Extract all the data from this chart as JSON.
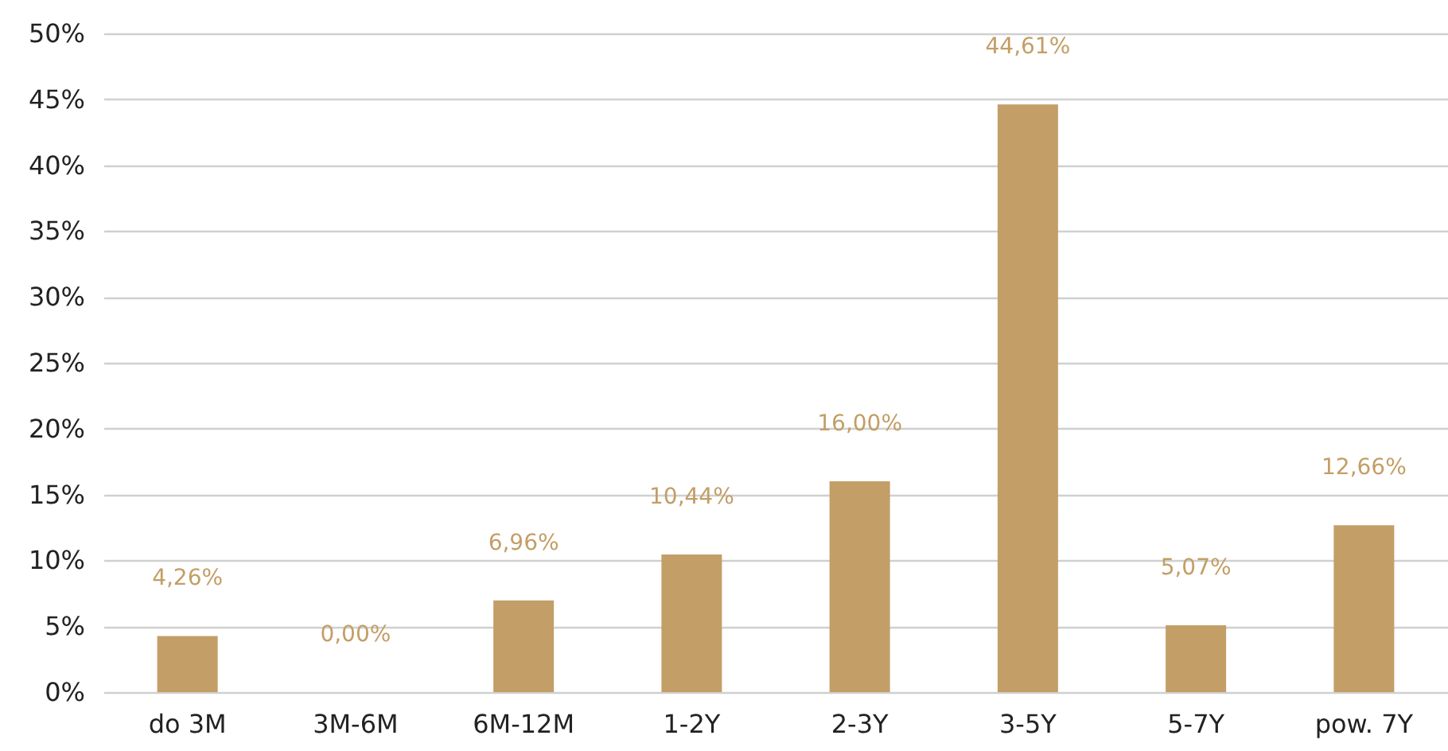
{
  "chart_data": {
    "type": "bar",
    "categories": [
      "do 3M",
      "3M-6M",
      "6M-12M",
      "1-2Y",
      "2-3Y",
      "3-5Y",
      "5-7Y",
      "pow. 7Y"
    ],
    "values": [
      4.26,
      0.0,
      6.96,
      10.44,
      16.0,
      44.61,
      5.07,
      12.66
    ],
    "value_labels": [
      "4,26%",
      "0,00%",
      "6,96%",
      "10,44%",
      "16,00%",
      "44,61%",
      "5,07%",
      "12,66%"
    ],
    "color": "#c39e66",
    "ylim": [
      0,
      50
    ],
    "yticks": [
      {
        "value": 0,
        "label": "0%"
      },
      {
        "value": 5,
        "label": "5%"
      },
      {
        "value": 10,
        "label": "10%"
      },
      {
        "value": 15,
        "label": "15%"
      },
      {
        "value": 20,
        "label": "20%"
      },
      {
        "value": 25,
        "label": "25%"
      },
      {
        "value": 30,
        "label": "30%"
      },
      {
        "value": 35,
        "label": "35%"
      },
      {
        "value": 40,
        "label": "40%"
      },
      {
        "value": 45,
        "label": "45%"
      },
      {
        "value": 50,
        "label": "50%"
      }
    ],
    "grid": "y"
  }
}
